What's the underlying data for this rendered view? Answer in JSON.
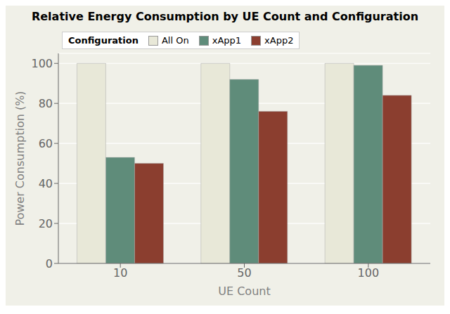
{
  "chart_data": {
    "type": "bar",
    "title": "Relative Energy Consumption by UE Count and Configuration",
    "x_label": "UE Count",
    "y_label": "Power Consumption (%)",
    "legend_title": "Configuration",
    "categories": [
      "10",
      "50",
      "100"
    ],
    "series": [
      {
        "name": "All On",
        "color": "#e8e8d8",
        "values": [
          100,
          100,
          100
        ]
      },
      {
        "name": "xApp1",
        "color": "#5f8c7a",
        "values": [
          53,
          92,
          99
        ]
      },
      {
        "name": "xApp2",
        "color": "#8b3e2f",
        "values": [
          50,
          76,
          84
        ]
      }
    ],
    "ylim": [
      0,
      105
    ],
    "yticks": [
      0,
      20,
      40,
      60,
      80,
      100
    ],
    "grid": true,
    "legend": "upper left"
  }
}
